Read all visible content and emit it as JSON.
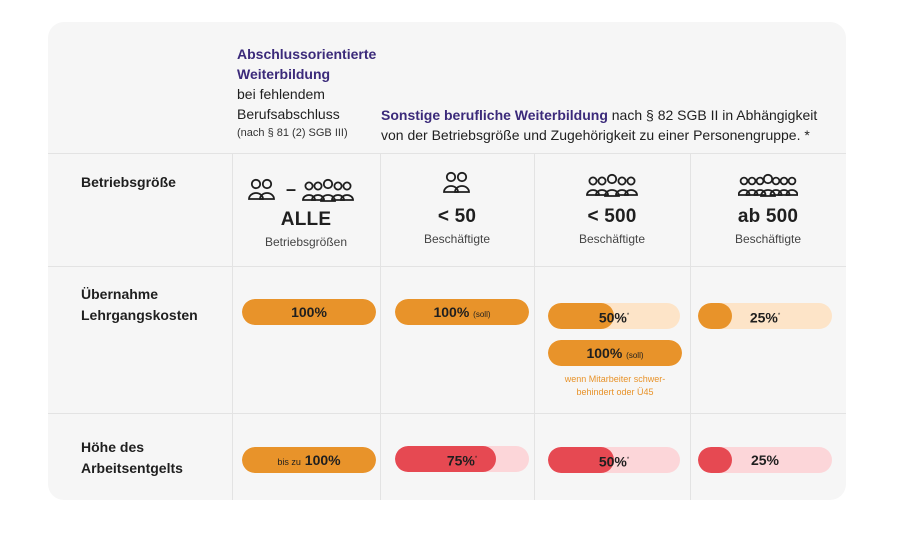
{
  "header": {
    "col1_line1": "Abschlussorientierte",
    "col1_line2": "Weiterbildung",
    "col1_line3": "bei fehlendem",
    "col1_line4": "Berufsabschluss",
    "col1_note": "(nach § 81 (2) SGB III)",
    "col2_bold": "Sonstige berufliche Weiterbildung",
    "col2_rest_line1": " nach § 82 SGB II in Abhängigkeit",
    "col2_line2": "von der Betriebsgröße und Zugehörigkeit zu einer Personengruppe. *"
  },
  "rows": {
    "size_label": "Betriebsgröße",
    "cost_label_line1": "Übernahme",
    "cost_label_line2": "Lehrgangskosten",
    "wage_label_line1": "Höhe des",
    "wage_label_line2": "Arbeitsentgelts"
  },
  "sizes": [
    {
      "value": "ALLE",
      "unit": "Betriebsgrößen",
      "separator": "–"
    },
    {
      "value": "< 50",
      "unit": "Beschäftigte"
    },
    {
      "value": "< 500",
      "unit": "Beschäftigte"
    },
    {
      "value": "ab 500",
      "unit": "Beschäftigte"
    }
  ],
  "cost": [
    {
      "label": "100%",
      "fraction": 1.0
    },
    {
      "label": "100%",
      "suffix": "(soll)",
      "fraction": 1.0
    },
    {
      "label": "50%",
      "asterisk": "*",
      "fraction": 0.5
    },
    {
      "label": "100%",
      "suffix": "(soll)",
      "fraction": 1.0,
      "note_line1": "wenn Mitarbeiter schwer-",
      "note_line2": "behindert oder Ü45"
    },
    {
      "label": "25%",
      "asterisk": "*",
      "fraction": 0.25
    }
  ],
  "wage": [
    {
      "prefix": "bis zu",
      "label": "100%",
      "fraction": 1.0
    },
    {
      "label": "75%",
      "asterisk": "*",
      "fraction": 0.75
    },
    {
      "label": "50%",
      "asterisk": "*",
      "fraction": 0.5
    },
    {
      "label": "25%",
      "fraction": 0.25
    }
  ],
  "colors": {
    "orange": "#e8932a",
    "orange_light": "#fde4c8",
    "red": "#e64952",
    "red_light": "#fcd6d9",
    "purple": "#3b2a7a"
  }
}
